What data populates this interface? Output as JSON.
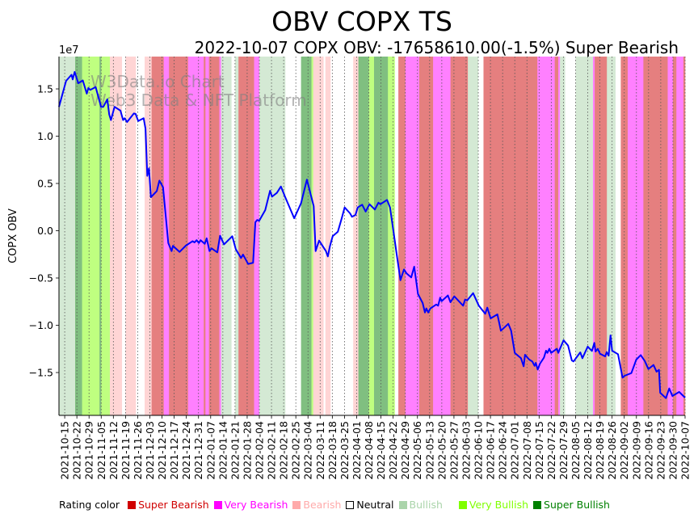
{
  "chart_data": {
    "type": "line",
    "title": "OBV COPX TS",
    "subtitle": "2022-10-07 COPX OBV: -17658610.00(-1.5%) Super Bearish",
    "watermark": [
      "W3Data.io Chart",
      "Web3 Data & NFT Platform"
    ],
    "ylabel": "COPX OBV",
    "y_offset_label": "1e7",
    "y_scale": 10000000,
    "ylim": [
      -1.953,
      1.842
    ],
    "yticks": [
      -1.5,
      -1.0,
      -0.5,
      0.0,
      0.5,
      1.0,
      1.5
    ],
    "ytick_labels": [
      "−1.5",
      "−1.0",
      "−0.5",
      "0.0",
      "0.5",
      "1.0",
      "1.5"
    ],
    "x_unit": "days since 2021-10-15",
    "xlim": [
      -3.3,
      357
    ],
    "xtick_labels": [
      "2021-10-15",
      "2021-10-22",
      "2021-10-29",
      "2021-11-05",
      "2021-11-12",
      "2021-11-19",
      "2021-11-26",
      "2021-12-03",
      "2021-12-10",
      "2021-12-17",
      "2021-12-24",
      "2021-12-31",
      "2022-01-07",
      "2022-01-14",
      "2022-01-21",
      "2022-01-28",
      "2022-02-04",
      "2022-02-11",
      "2022-02-18",
      "2022-02-25",
      "2022-03-04",
      "2022-03-11",
      "2022-03-18",
      "2022-03-25",
      "2022-04-01",
      "2022-04-08",
      "2022-04-15",
      "2022-04-22",
      "2022-04-29",
      "2022-05-06",
      "2022-05-13",
      "2022-05-20",
      "2022-05-27",
      "2022-06-03",
      "2022-06-10",
      "2022-06-17",
      "2022-06-24",
      "2022-07-01",
      "2022-07-08",
      "2022-07-15",
      "2022-07-22",
      "2022-07-29",
      "2022-08-05",
      "2022-08-12",
      "2022-08-19",
      "2022-08-26",
      "2022-09-02",
      "2022-09-09",
      "2022-09-16",
      "2022-09-23",
      "2022-09-30",
      "2022-10-07"
    ],
    "grid": "x dotted",
    "series": [
      {
        "name": "COPX OBV",
        "color": "#0000ff",
        "x": [
          -3.3,
          0.8,
          3.9,
          4.6,
          5.7,
          7.8,
          10.4,
          12.7,
          13.6,
          14.7,
          17.8,
          20.9,
          22.2,
          24.5,
          25.6,
          26.6,
          28.7,
          32.1,
          33.6,
          34.5,
          35.9,
          39.8,
          40.8,
          42.3,
          45.4,
          46.5,
          47.5,
          48.5,
          49.6,
          53,
          54.5,
          56.6,
          59.6,
          61.5,
          62.3,
          66.1,
          69.7,
          73.6,
          74.7,
          75.9,
          77.2,
          78.2,
          80.6,
          81.7,
          83.3,
          84.5,
          87.8,
          89.4,
          91.7,
          96.4,
          98.4,
          101.5,
          102.6,
          105.6,
          108.4,
          109.7,
          110.8,
          111.9,
          115.4,
          118.2,
          119.3,
          122.1,
          124.4,
          126.8,
          132.1,
          136,
          139.4,
          143.3,
          144.4,
          146.4,
          150.3,
          151.4,
          152.6,
          154.2,
          157.2,
          159.3,
          161.1,
          164.2,
          165.3,
          167.3,
          168.6,
          171.2,
          173.2,
          175.4,
          178.5,
          180.5,
          181.7,
          185.5,
          187.2,
          189,
          191.4,
          193.2,
          195.2,
          196.7,
          199.4,
          201.1,
          203.3,
          206,
          207.3,
          208.1,
          209.2,
          210.4,
          213.8,
          214.9,
          216.1,
          216.9,
          220.5,
          222,
          224.2,
          229.3,
          230.4,
          231.6,
          235,
          238.3,
          242,
          243.2,
          245.1,
          249,
          251,
          255.3,
          256.9,
          259,
          262.6,
          264.1,
          264.9,
          267.3,
          269.1,
          270.4,
          271.1,
          272.2,
          273.5,
          275.8,
          277,
          277.8,
          278.9,
          279.9,
          283.2,
          284,
          287.1,
          289.7,
          291.8,
          292.8,
          296.7,
          297.9,
          301,
          303.4,
          304.8,
          305.5,
          306.8,
          308,
          311,
          311.9,
          313,
          314.1,
          315,
          318.4,
          321,
          322.2,
          326.1,
          328.9,
          331.5,
          333.8,
          335.9,
          338.8,
          340.6,
          342,
          342.7,
          346,
          347.9,
          349.7,
          353.6,
          357
        ],
        "y": [
          1.31,
          1.585,
          1.65,
          1.6,
          1.68,
          1.56,
          1.59,
          1.45,
          1.51,
          1.49,
          1.52,
          1.31,
          1.31,
          1.39,
          1.23,
          1.17,
          1.31,
          1.27,
          1.17,
          1.19,
          1.15,
          1.24,
          1.235,
          1.16,
          1.19,
          1.08,
          0.58,
          0.66,
          0.355,
          0.42,
          0.53,
          0.46,
          -0.13,
          -0.215,
          -0.16,
          -0.224,
          -0.158,
          -0.11,
          -0.124,
          -0.1,
          -0.13,
          -0.1,
          -0.138,
          -0.08,
          -0.215,
          -0.186,
          -0.229,
          -0.053,
          -0.144,
          -0.058,
          -0.195,
          -0.289,
          -0.252,
          -0.352,
          -0.338,
          0.09,
          0.115,
          0.104,
          0.218,
          0.423,
          0.36,
          0.4,
          0.468,
          0.36,
          0.132,
          0.29,
          0.54,
          0.26,
          -0.215,
          -0.104,
          -0.215,
          -0.272,
          -0.167,
          -0.058,
          -0.01,
          0.126,
          0.246,
          0.184,
          0.147,
          0.167,
          0.246,
          0.275,
          0.203,
          0.28,
          0.224,
          0.297,
          0.28,
          0.326,
          0.246,
          0.019,
          -0.295,
          -0.523,
          -0.41,
          -0.45,
          -0.494,
          -0.38,
          -0.67,
          -0.765,
          -0.865,
          -0.822,
          -0.865,
          -0.822,
          -0.78,
          -0.793,
          -0.708,
          -0.745,
          -0.685,
          -0.756,
          -0.694,
          -0.793,
          -0.728,
          -0.737,
          -0.66,
          -0.793,
          -0.879,
          -0.814,
          -0.927,
          -0.885,
          -1.058,
          -0.985,
          -1.058,
          -1.292,
          -1.349,
          -1.434,
          -1.312,
          -1.363,
          -1.383,
          -1.429,
          -1.397,
          -1.468,
          -1.406,
          -1.343,
          -1.269,
          -1.292,
          -1.249,
          -1.292,
          -1.249,
          -1.292,
          -1.158,
          -1.215,
          -1.372,
          -1.383,
          -1.286,
          -1.349,
          -1.226,
          -1.272,
          -1.186,
          -1.278,
          -1.249,
          -1.3,
          -1.329,
          -1.284,
          -1.321,
          -1.107,
          -1.269,
          -1.306,
          -1.554,
          -1.534,
          -1.506,
          -1.363,
          -1.315,
          -1.378,
          -1.463,
          -1.42,
          -1.491,
          -1.472,
          -1.714,
          -1.771,
          -1.668,
          -1.748,
          -1.705,
          -1.766
        ]
      }
    ],
    "rating_bands": [
      [
        -3.3,
        6,
        "bullish"
      ],
      [
        6,
        10,
        "super_bullish"
      ],
      [
        10,
        20,
        "very_bullish"
      ],
      [
        20,
        21,
        "super_bullish"
      ],
      [
        21,
        26,
        "very_bullish"
      ],
      [
        26,
        33,
        "bearish"
      ],
      [
        33,
        35,
        "neutral"
      ],
      [
        35,
        41,
        "bearish"
      ],
      [
        41,
        46,
        "neutral"
      ],
      [
        46,
        50,
        "bearish"
      ],
      [
        50,
        57,
        "super_bearish"
      ],
      [
        57,
        60,
        "very_bearish"
      ],
      [
        60,
        71,
        "super_bearish"
      ],
      [
        71,
        80,
        "very_bearish"
      ],
      [
        80,
        81,
        "super_bearish"
      ],
      [
        81,
        83,
        "very_bearish"
      ],
      [
        83,
        89,
        "super_bearish"
      ],
      [
        89,
        90,
        "very_bearish"
      ],
      [
        90,
        96,
        "bullish"
      ],
      [
        96,
        98,
        "neutral"
      ],
      [
        98,
        100,
        "bullish"
      ],
      [
        100,
        109,
        "super_bearish"
      ],
      [
        109,
        112,
        "very_bearish"
      ],
      [
        112,
        127,
        "bullish"
      ],
      [
        127,
        136,
        "neutral"
      ],
      [
        136,
        142,
        "super_bullish"
      ],
      [
        142,
        143,
        "very_bullish"
      ],
      [
        143,
        149,
        "bearish"
      ],
      [
        149,
        150,
        "neutral"
      ],
      [
        150,
        153,
        "bearish"
      ],
      [
        153,
        166,
        "neutral"
      ],
      [
        166,
        169,
        "bearish"
      ],
      [
        169,
        175,
        "super_bullish"
      ],
      [
        175,
        178,
        "very_bullish"
      ],
      [
        178,
        186,
        "super_bullish"
      ],
      [
        186,
        190,
        "very_bullish"
      ],
      [
        190,
        192,
        "neutral"
      ],
      [
        192,
        196,
        "super_bearish"
      ],
      [
        196,
        204,
        "very_bearish"
      ],
      [
        204,
        212,
        "super_bearish"
      ],
      [
        212,
        222,
        "very_bearish"
      ],
      [
        222,
        232,
        "super_bearish"
      ],
      [
        232,
        238,
        "bullish"
      ],
      [
        238,
        241,
        "neutral"
      ],
      [
        241,
        272,
        "super_bearish"
      ],
      [
        272,
        282,
        "very_bearish"
      ],
      [
        282,
        284,
        "super_bearish"
      ],
      [
        284,
        285,
        "very_bearish"
      ],
      [
        285,
        288,
        "bullish"
      ],
      [
        288,
        294,
        "neutral"
      ],
      [
        294,
        304,
        "bullish"
      ],
      [
        304,
        305,
        "very_bearish"
      ],
      [
        305,
        312,
        "super_bearish"
      ],
      [
        312,
        317,
        "bullish"
      ],
      [
        317,
        320,
        "neutral"
      ],
      [
        320,
        324,
        "super_bearish"
      ],
      [
        324,
        333,
        "very_bearish"
      ],
      [
        333,
        347,
        "super_bearish"
      ],
      [
        347,
        350,
        "very_bearish"
      ],
      [
        350,
        352,
        "super_bearish"
      ],
      [
        352,
        356,
        "very_bearish"
      ],
      [
        356,
        357,
        "super_bearish"
      ]
    ],
    "band_colors": {
      "super_bearish": "#e57f7f",
      "very_bearish": "#ff80ff",
      "bearish": "#ffd5d5",
      "neutral": "#ffffff",
      "bullish": "#d4e9d4",
      "very_bullish": "#bfff80",
      "super_bullish": "#80bf80"
    },
    "legend": {
      "title": "Rating color",
      "placement": "bottom",
      "items": [
        {
          "key": "super_bearish",
          "label": "Super Bearish",
          "color": "#d00000"
        },
        {
          "key": "very_bearish",
          "label": "Very Bearish",
          "color": "#ff00ff"
        },
        {
          "key": "bearish",
          "label": "Bearish",
          "color": "#ffaaaa"
        },
        {
          "key": "neutral",
          "label": "Neutral",
          "color": "#ffffff"
        },
        {
          "key": "bullish",
          "label": "Bullish",
          "color": "#aad4aa"
        },
        {
          "key": "very_bullish",
          "label": "Very Bullish",
          "color": "#7fff00"
        },
        {
          "key": "super_bullish",
          "label": "Super Bullish",
          "color": "#008000"
        }
      ]
    }
  }
}
